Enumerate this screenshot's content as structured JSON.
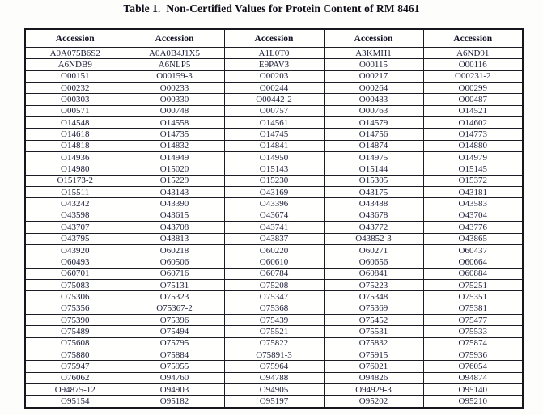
{
  "title": "Table 1.  Non-Certified Values for Protein Content of RM 8461",
  "colors": {
    "text": "#1d1d3a",
    "border": "#1c1c26",
    "background": "#fdfdfb"
  },
  "table": {
    "columns": [
      "Accession",
      "Accession",
      "Accession",
      "Accession",
      "Accession"
    ],
    "rows": [
      [
        "A0A075B6S2",
        "A0A0B4J1X5",
        "A1L0T0",
        "A3KMH1",
        "A6ND91"
      ],
      [
        "A6NDB9",
        "A6NLP5",
        "E9PAV3",
        "O00115",
        "O00116"
      ],
      [
        "O00151",
        "O00159-3",
        "O00203",
        "O00217",
        "O00231-2"
      ],
      [
        "O00232",
        "O00233",
        "O00244",
        "O00264",
        "O00299"
      ],
      [
        "O00303",
        "O00330",
        "O00442-2",
        "O00483",
        "O00487"
      ],
      [
        "O00571",
        "O00748",
        "O00757",
        "O00763",
        "O14521"
      ],
      [
        "O14548",
        "O14558",
        "O14561",
        "O14579",
        "O14602"
      ],
      [
        "O14618",
        "O14735",
        "O14745",
        "O14756",
        "O14773"
      ],
      [
        "O14818",
        "O14832",
        "O14841",
        "O14874",
        "O14880"
      ],
      [
        "O14936",
        "O14949",
        "O14950",
        "O14975",
        "O14979"
      ],
      [
        "O14980",
        "O15020",
        "O15143",
        "O15144",
        "O15145"
      ],
      [
        "O15173-2",
        "O15229",
        "O15230",
        "O15305",
        "O15372"
      ],
      [
        "O15511",
        "O43143",
        "O43169",
        "O43175",
        "O43181"
      ],
      [
        "O43242",
        "O43390",
        "O43396",
        "O43488",
        "O43583"
      ],
      [
        "O43598",
        "O43615",
        "O43674",
        "O43678",
        "O43704"
      ],
      [
        "O43707",
        "O43708",
        "O43741",
        "O43772",
        "O43776"
      ],
      [
        "O43795",
        "O43813",
        "O43837",
        "O43852-3",
        "O43865"
      ],
      [
        "O43920",
        "O60218",
        "O60220",
        "O60271",
        "O60437"
      ],
      [
        "O60493",
        "O60506",
        "O60610",
        "O60656",
        "O60664"
      ],
      [
        "O60701",
        "O60716",
        "O60784",
        "O60841",
        "O60884"
      ],
      [
        "O75083",
        "O75131",
        "O75208",
        "O75223",
        "O75251"
      ],
      [
        "O75306",
        "O75323",
        "O75347",
        "O75348",
        "O75351"
      ],
      [
        "O75356",
        "O75367-2",
        "O75368",
        "O75369",
        "O75381"
      ],
      [
        "O75390",
        "O75396",
        "O75439",
        "O75452",
        "O75477"
      ],
      [
        "O75489",
        "O75494",
        "O75521",
        "O75531",
        "O75533"
      ],
      [
        "O75608",
        "O75795",
        "O75822",
        "O75832",
        "O75874"
      ],
      [
        "O75880",
        "O75884",
        "O75891-3",
        "O75915",
        "O75936"
      ],
      [
        "O75947",
        "O75955",
        "O75964",
        "O76021",
        "O76054"
      ],
      [
        "O76062",
        "O94760",
        "O94788",
        "O94826",
        "O94874"
      ],
      [
        "O94875-12",
        "O94903",
        "O94905",
        "O94929-3",
        "O95140"
      ],
      [
        "O95154",
        "O95182",
        "O95197",
        "O95202",
        "O95210"
      ]
    ]
  }
}
